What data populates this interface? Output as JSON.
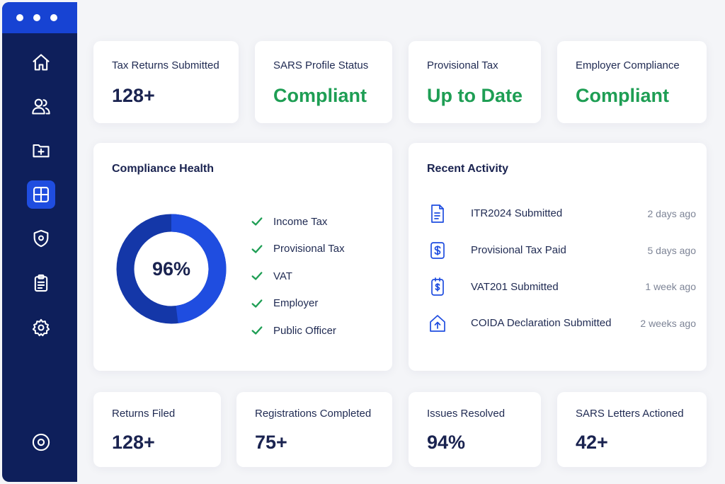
{
  "sidebar": {
    "nav": [
      {
        "icon": "home-icon"
      },
      {
        "icon": "users-icon"
      },
      {
        "icon": "folder-add-icon"
      },
      {
        "icon": "dashboard-grid-icon",
        "active": true
      },
      {
        "icon": "shield-icon"
      },
      {
        "icon": "clipboard-icon"
      },
      {
        "icon": "gear-icon"
      }
    ],
    "bottom_icon": "circle-target-icon"
  },
  "top_stats": [
    {
      "label": "Tax Returns Submitted",
      "value": "128+"
    },
    {
      "label": "SARS Profile Status",
      "value": "Compliant"
    },
    {
      "label": "Provisional Tax",
      "value": "Up to Date"
    },
    {
      "label": "Employer Compliance",
      "value": "Compliant"
    }
  ],
  "compliance": {
    "title": "Compliance Health",
    "percent_label": "96%",
    "percent": 96,
    "items": [
      "Income Tax",
      "Provisional Tax",
      "VAT",
      "Employer",
      "Public Officer"
    ]
  },
  "activity": {
    "title": "Recent Activity",
    "items": [
      {
        "icon": "document-icon",
        "title": "ITR2024 Submitted",
        "time": "2 days ago"
      },
      {
        "icon": "payment-icon",
        "title": "Provisional Tax Paid",
        "time": "5 days ago"
      },
      {
        "icon": "receipt-icon",
        "title": "VAT201 Submitted",
        "time": "1 week ago"
      },
      {
        "icon": "upload-icon",
        "title": "COIDA Declaration Submitted",
        "time": "2 weeks ago"
      }
    ]
  },
  "bottom_stats": [
    {
      "label": "Returns Filed",
      "value": "128+"
    },
    {
      "label": "Registrations Completed",
      "value": "75+"
    },
    {
      "label": "Issues Resolved",
      "value": "94%"
    },
    {
      "label": "SARS Letters Actioned",
      "value": "42+"
    }
  ],
  "colors": {
    "sidebar": "#0e1f5b",
    "accent": "#1f4de0",
    "success": "#1e9e54"
  }
}
